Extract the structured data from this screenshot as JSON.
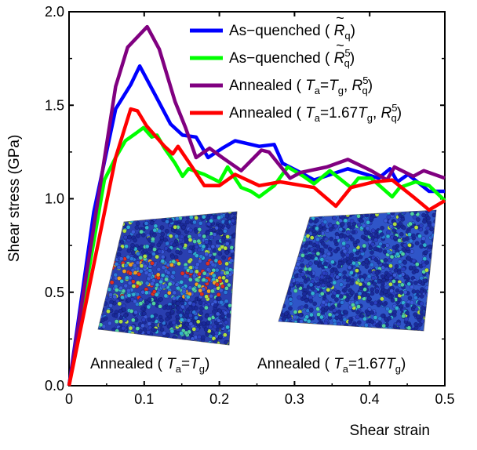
{
  "chart_data": {
    "type": "line",
    "xlabel": "Shear strain",
    "ylabel": "Shear stress (GPa)",
    "xlim": [
      0,
      0.5
    ],
    "ylim": [
      0,
      2.0
    ],
    "xticks": [
      "0",
      "0.1",
      "0.2",
      "0.3",
      "0.4",
      "0.5"
    ],
    "yticks": [
      "0.0",
      "0.5",
      "1.0",
      "1.5",
      "2.0"
    ],
    "grid": false,
    "legend_placement": "top-right",
    "series": [
      {
        "name": "As-quenched ( R̃q )",
        "color": "#0000ff",
        "x": [
          0,
          0.033,
          0.062,
          0.082,
          0.094,
          0.114,
          0.135,
          0.151,
          0.169,
          0.185,
          0.204,
          0.221,
          0.253,
          0.273,
          0.284,
          0.308,
          0.326,
          0.371,
          0.412,
          0.427,
          0.437,
          0.451,
          0.479,
          0.5
        ],
        "y": [
          0,
          0.93,
          1.48,
          1.61,
          1.71,
          1.56,
          1.4,
          1.34,
          1.33,
          1.22,
          1.27,
          1.31,
          1.28,
          1.29,
          1.19,
          1.14,
          1.1,
          1.16,
          1.11,
          1.16,
          1.09,
          1.13,
          1.04,
          1.04
        ]
      },
      {
        "name": "As-quenched ( R̃q5 )",
        "color": "#00ff00",
        "x": [
          0,
          0.047,
          0.062,
          0.075,
          0.089,
          0.099,
          0.11,
          0.117,
          0.127,
          0.141,
          0.151,
          0.159,
          0.18,
          0.2,
          0.211,
          0.229,
          0.242,
          0.253,
          0.273,
          0.291,
          0.312,
          0.326,
          0.347,
          0.375,
          0.385,
          0.402,
          0.43,
          0.44,
          0.461,
          0.479,
          0.5
        ],
        "y": [
          0,
          1.1,
          1.22,
          1.31,
          1.35,
          1.38,
          1.33,
          1.34,
          1.27,
          1.19,
          1.12,
          1.16,
          1.13,
          1.09,
          1.17,
          1.06,
          1.04,
          1.01,
          1.07,
          1.17,
          1.12,
          1.08,
          1.15,
          1.06,
          1.11,
          1.11,
          1.01,
          1.06,
          1.09,
          1.07,
          0.99
        ]
      },
      {
        "name": "Annealed ( Ta=Tg, Rq5 )",
        "color": "#800080",
        "x": [
          0,
          0.062,
          0.078,
          0.104,
          0.12,
          0.141,
          0.155,
          0.169,
          0.187,
          0.204,
          0.229,
          0.256,
          0.266,
          0.294,
          0.308,
          0.343,
          0.371,
          0.402,
          0.423,
          0.433,
          0.458,
          0.472,
          0.5
        ],
        "y": [
          0,
          1.6,
          1.81,
          1.92,
          1.8,
          1.52,
          1.38,
          1.22,
          1.27,
          1.22,
          1.15,
          1.26,
          1.25,
          1.11,
          1.14,
          1.17,
          1.21,
          1.15,
          1.1,
          1.17,
          1.12,
          1.15,
          1.11
        ]
      },
      {
        "name": "Annealed ( Ta=1.67Tg, Rq5 )",
        "color": "#ff0000",
        "x": [
          0,
          0.062,
          0.082,
          0.091,
          0.103,
          0.127,
          0.138,
          0.145,
          0.162,
          0.18,
          0.2,
          0.221,
          0.253,
          0.281,
          0.326,
          0.355,
          0.375,
          0.406,
          0.43,
          0.458,
          0.479,
          0.5
        ],
        "y": [
          0,
          1.22,
          1.48,
          1.47,
          1.39,
          1.28,
          1.24,
          1.28,
          1.18,
          1.07,
          1.07,
          1.13,
          1.07,
          1.09,
          1.06,
          0.96,
          1.06,
          1.09,
          1.1,
          1.01,
          0.94,
          0.99
        ]
      }
    ],
    "legend": [
      {
        "pre": "As−quenched ( ",
        "main": "R",
        "tilde": true,
        "sup": "",
        "sub": "q",
        "post": ")"
      },
      {
        "pre": "As−quenched ( ",
        "main": "R",
        "tilde": true,
        "sup": "5",
        "sub": "q",
        "post": ")"
      },
      {
        "pre": "Annealed ( ",
        "ta": "T",
        "ta_sub": "a",
        "eq": "=",
        "tg": "T",
        "tg_sub": "g",
        "comma": ", ",
        "main": "R",
        "sup": "5",
        "sub": "q",
        "post": ")"
      },
      {
        "pre": "Annealed ( ",
        "ta": "T",
        "ta_sub": "a",
        "eq": "=1.67",
        "tg": "T",
        "tg_sub": "g",
        "comma": ", ",
        "main": "R",
        "sup": "5",
        "sub": "q",
        "post": ")"
      }
    ],
    "annotations": [
      {
        "pre": "Annealed ( ",
        "t1": "T",
        "s1": "a",
        "eq": "=",
        "t2": "T",
        "s2": "g",
        "post": ")"
      },
      {
        "pre": "Annealed ( ",
        "t1": "T",
        "s1": "a",
        "eq": "=1.67",
        "t2": "T",
        "s2": "g",
        "post": ")"
      }
    ]
  }
}
